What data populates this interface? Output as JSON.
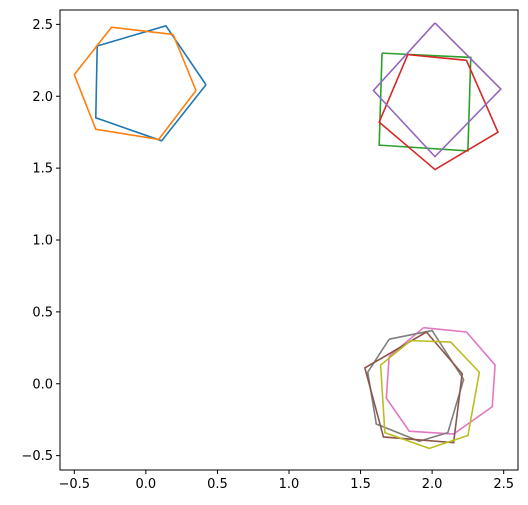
{
  "chart_data": {
    "type": "line",
    "title": "",
    "xlabel": "",
    "ylabel": "",
    "xlim": [
      -0.6,
      2.6
    ],
    "ylim": [
      -0.6,
      2.6
    ],
    "x_ticks": [
      -0.5,
      0.0,
      0.5,
      1.0,
      1.5,
      2.0,
      2.5
    ],
    "x_tick_labels": [
      "−0.5",
      "0.0",
      "0.5",
      "1.0",
      "1.5",
      "2.0",
      "2.5"
    ],
    "y_ticks": [
      -0.5,
      0.0,
      0.5,
      1.0,
      1.5,
      2.0,
      2.5
    ],
    "y_tick_labels": [
      "−0.5",
      "0.0",
      "0.5",
      "1.0",
      "1.5",
      "2.0",
      "2.5"
    ],
    "grid": false,
    "legend": "none",
    "series": [
      {
        "color": "#1f77b4",
        "x": [
          0.42,
          0.14,
          -0.34,
          -0.35,
          0.11,
          0.42
        ],
        "y": [
          2.08,
          2.49,
          2.35,
          1.85,
          1.69,
          2.08
        ]
      },
      {
        "color": "#ff7f0e",
        "x": [
          0.19,
          -0.24,
          -0.5,
          -0.35,
          0.09,
          0.35,
          0.19
        ],
        "y": [
          2.43,
          2.48,
          2.15,
          1.77,
          1.7,
          2.04,
          2.43
        ]
      },
      {
        "color": "#2ca02c",
        "x": [
          1.65,
          2.27,
          2.25,
          1.63,
          1.65
        ],
        "y": [
          2.3,
          2.27,
          1.62,
          1.66,
          2.3
        ]
      },
      {
        "color": "#d62728",
        "x": [
          2.24,
          1.83,
          1.63,
          2.02,
          2.46,
          2.24
        ],
        "y": [
          2.25,
          2.29,
          1.82,
          1.49,
          1.75,
          2.25
        ]
      },
      {
        "color": "#9467bd",
        "x": [
          2.02,
          2.48,
          2.02,
          1.59,
          2.02
        ],
        "y": [
          2.51,
          2.05,
          1.58,
          2.04,
          2.51
        ]
      },
      {
        "color": "#e377c2",
        "x": [
          1.94,
          2.24,
          2.44,
          2.42,
          2.15,
          1.84,
          1.68,
          1.7,
          1.94
        ],
        "y": [
          0.39,
          0.36,
          0.13,
          -0.16,
          -0.35,
          -0.33,
          -0.1,
          0.19,
          0.39
        ]
      },
      {
        "color": "#7f7f7f",
        "x": [
          1.7,
          2.0,
          2.22,
          2.11,
          1.91,
          1.61,
          1.55,
          1.7
        ],
        "y": [
          0.31,
          0.37,
          0.03,
          -0.34,
          -0.4,
          -0.28,
          0.08,
          0.31
        ]
      },
      {
        "color": "#8c564b",
        "x": [
          1.96,
          2.21,
          2.15,
          1.66,
          1.53,
          1.96
        ],
        "y": [
          0.36,
          0.07,
          -0.41,
          -0.37,
          0.11,
          0.36
        ]
      },
      {
        "color": "#bcbd22",
        "x": [
          1.85,
          2.13,
          2.33,
          2.25,
          1.98,
          1.67,
          1.64,
          1.85
        ],
        "y": [
          0.3,
          0.29,
          0.08,
          -0.36,
          -0.45,
          -0.34,
          0.13,
          0.3
        ]
      }
    ]
  }
}
